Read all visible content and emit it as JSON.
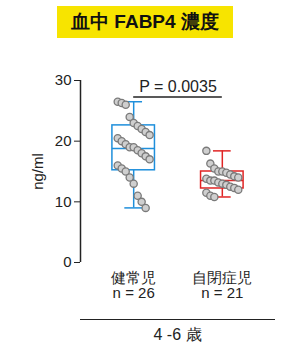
{
  "chart_data": {
    "type": "box",
    "title": "血中 FABP4 濃度",
    "y_label": "ng/ml",
    "categories": [
      "健常児\nn = 26",
      "自閉症児\nn = 21"
    ],
    "colors": [
      "#1f8fdb",
      "#e02424"
    ],
    "points": [
      [
        26.5,
        26.3,
        26,
        24,
        23,
        22.5,
        22,
        21.5,
        21,
        20.5,
        20,
        19.5,
        19,
        19,
        18.5,
        18,
        17.5,
        17,
        16,
        15.5,
        15,
        14,
        13,
        11,
        10,
        9
      ],
      [
        18.4,
        16.3,
        15.5,
        15,
        15,
        14.8,
        14.5,
        14.2,
        14,
        13.8,
        13.5,
        13.5,
        13.2,
        13,
        12.8,
        12.5,
        12.3,
        12,
        11.5,
        11,
        10.8
      ]
    ],
    "boxes": [
      {
        "min": 9,
        "q1": 15.2,
        "median": 18.8,
        "q3": 22.6,
        "max": 26.5
      },
      {
        "min": 10.8,
        "q1": 12.2,
        "median": 13.5,
        "q3": 15.0,
        "max": 18.4
      }
    ],
    "ylim": [
      0,
      30
    ],
    "yticks": [
      0,
      10,
      20,
      30
    ],
    "annotation": "P = 0.0035",
    "group_label": "4 -6 歳"
  }
}
